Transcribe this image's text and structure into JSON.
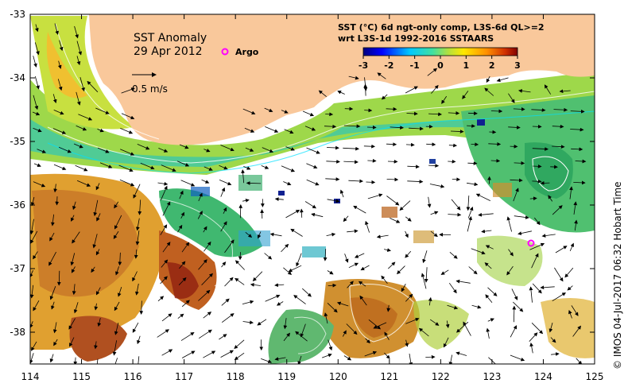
{
  "map": {
    "title": "SST Anomaly",
    "date": "29 Apr 2012",
    "scale_label": "0.5 m/s",
    "argo_label": "Argo",
    "legend_line1": "SST (°C) 6d ngt-only comp, L3S-6d QL>=2",
    "legend_line2": "wrt L3S-1d 1992-2016 SSTAARS",
    "credit": "© IMOS 04-Jul-2017 06:32 Hobart Time",
    "colorbar_ticks": [
      "-3",
      "-2",
      "-1",
      "0",
      "1",
      "2",
      "3"
    ],
    "x_ticks": [
      "114",
      "115",
      "116",
      "117",
      "118",
      "119",
      "120",
      "121",
      "122",
      "123",
      "124",
      "125"
    ],
    "y_ticks": [
      "-33",
      "-34",
      "-35",
      "-36",
      "-37",
      "-38"
    ],
    "land_color": "#f9c89b",
    "argo_color": "#ff00ff",
    "icons": [
      "argo-marker-icon",
      "velocity-arrow-icon"
    ]
  }
}
